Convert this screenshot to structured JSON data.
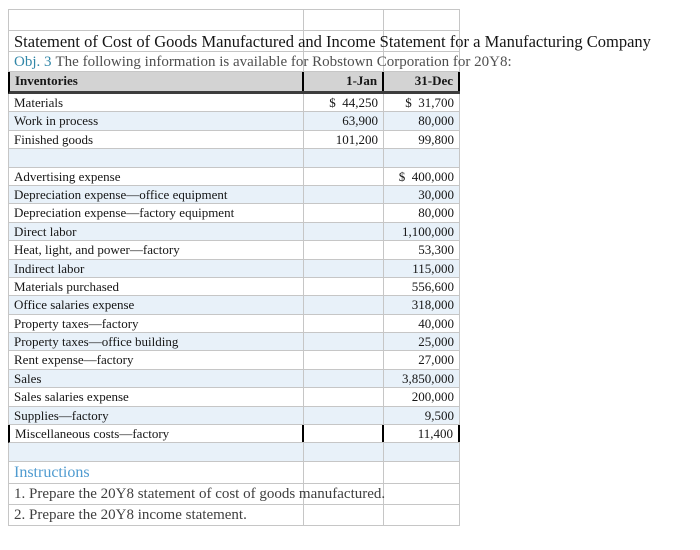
{
  "title": "Statement of Cost of Goods Manufactured and Income Statement for a Manufacturing Company",
  "objective": {
    "label": "Obj. 3",
    "text": "The following information is available for Robstown Corporation for 20Y8:"
  },
  "colors": {
    "alt_row": "#e8f1f9",
    "header_bg": "#d3d3d3",
    "header_rule": "#3d3d3d",
    "gridline": "#c6c6c6",
    "objective_accent": "#3287a8",
    "instructions_accent": "#4f9bd0"
  },
  "inventories": {
    "headers": {
      "col_a": "Inventories",
      "col_b": "1-Jan",
      "col_c": "31-Dec"
    },
    "rows": [
      {
        "label": "Materials",
        "jan": "$  44,250",
        "dec": "$  31,700"
      },
      {
        "label": "Work in process",
        "jan": "63,900",
        "dec": "80,000"
      },
      {
        "label": "Finished goods",
        "jan": "101,200",
        "dec": "99,800"
      }
    ]
  },
  "expenses": {
    "rows": [
      {
        "label": "Advertising expense",
        "dec": "$  400,000"
      },
      {
        "label": "Depreciation expense—office equipment",
        "dec": "30,000"
      },
      {
        "label": "Depreciation expense—factory equipment",
        "dec": "80,000"
      },
      {
        "label": "Direct labor",
        "dec": "1,100,000"
      },
      {
        "label": "Heat, light, and power—factory",
        "dec": "53,300"
      },
      {
        "label": "Indirect labor",
        "dec": "115,000"
      },
      {
        "label": "Materials purchased",
        "dec": "556,600"
      },
      {
        "label": "Office salaries expense",
        "dec": "318,000"
      },
      {
        "label": "Property taxes—factory",
        "dec": "40,000"
      },
      {
        "label": "Property taxes—office building",
        "dec": "25,000"
      },
      {
        "label": "Rent expense—factory",
        "dec": "27,000"
      },
      {
        "label": "Sales",
        "dec": "3,850,000"
      },
      {
        "label": "Sales salaries expense",
        "dec": "200,000"
      },
      {
        "label": "Supplies—factory",
        "dec": "9,500"
      },
      {
        "label": "Miscellaneous costs—factory",
        "dec": "11,400"
      }
    ]
  },
  "instructions": {
    "heading": "Instructions",
    "items": [
      "1. Prepare the 20Y8 statement of cost of goods manufactured.",
      "2. Prepare the 20Y8 income statement."
    ]
  }
}
